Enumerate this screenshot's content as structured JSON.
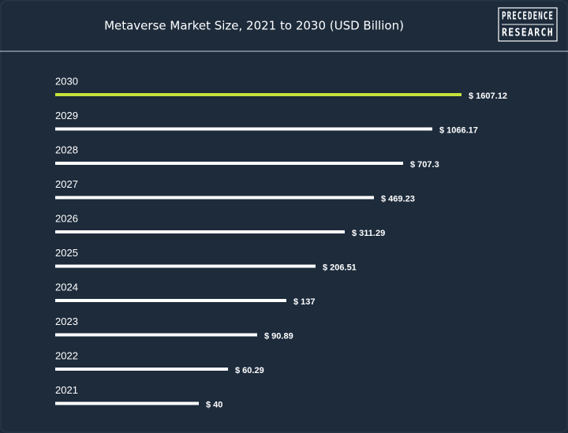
{
  "logo": [
    "PRECEDENCE",
    "RESEARCH"
  ],
  "chart_data": {
    "type": "bar",
    "orientation": "horizontal",
    "log_scale": true,
    "title": "Metaverse Market Size, 2021 to 2030 (USD Billion)",
    "categories": [
      "2021",
      "2022",
      "2023",
      "2024",
      "2025",
      "2026",
      "2027",
      "2028",
      "2029",
      "2030"
    ],
    "values": [
      40,
      60.29,
      90.89,
      137,
      206.51,
      311.29,
      469.23,
      707.3,
      1066.17,
      1607.12
    ],
    "value_labels": [
      "$ 40",
      "$ 60.29",
      "$ 90.89",
      "$ 137",
      "$ 206.51",
      "$ 311.29",
      "$ 469.23",
      "$ 707.3",
      "$ 1066.17",
      "$ 1607.12"
    ],
    "color": "#ffffff",
    "highlight_color": "#c6e23a",
    "highlight_index": 9
  }
}
